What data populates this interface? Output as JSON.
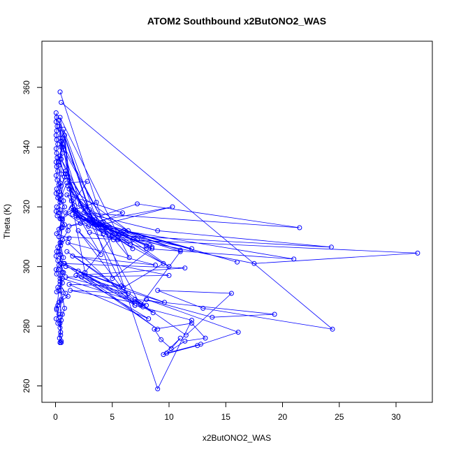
{
  "chart_data": {
    "type": "line",
    "title": "ATOM2 Southbound x2ButONO2_WAS",
    "xlabel": "x2ButONO2_WAS",
    "ylabel": "Theta (K)",
    "xlim": [
      -1.2,
      33.2
    ],
    "ylim": [
      254.5,
      375.5
    ],
    "xticks": [
      0,
      5,
      10,
      15,
      20,
      25,
      30
    ],
    "yticks": [
      260,
      280,
      300,
      320,
      340,
      360
    ],
    "grid": false,
    "line_color": "#0000ff",
    "marker": "open-circle",
    "series": [
      {
        "x": [
          0.05,
          0.1,
          0.05,
          0.15,
          0.1,
          0.05,
          0.1,
          0.2,
          0.05,
          0.1,
          0.15,
          0.05,
          0.1,
          0.2,
          0.05,
          0.15,
          0.3,
          0.1,
          0.05,
          0.2,
          0.4,
          0.1,
          0.05,
          0.15,
          0.6,
          0.8,
          0.3,
          0.1,
          1.2,
          0.5,
          0.2,
          0.1,
          0.05,
          0.2,
          0.3,
          0.05,
          0.1,
          0.4,
          0.6,
          0.2,
          0.1,
          1.1,
          0.5,
          0.2,
          0.1,
          0.3,
          0.05,
          0.2,
          0.4,
          0.1,
          0.3,
          0.6,
          0.4,
          0.3,
          0.5,
          0.7,
          0.4,
          0.3,
          0.5,
          0.4,
          0.6,
          0.4,
          0.5,
          0.3,
          0.4,
          0.5,
          0.45,
          0.5,
          0.4,
          0.5,
          0.4,
          0.45,
          0.5,
          0.4,
          0.5,
          0.45,
          0.5,
          0.35,
          0.4
        ],
        "y": [
          351.5,
          350.0,
          348.5,
          347.0,
          345.5,
          344.0,
          342.5,
          341.0,
          339.5,
          338.0,
          336.5,
          335.0,
          333.5,
          332.0,
          330.5,
          329.0,
          327.5,
          326.0,
          324.5,
          323.0,
          321.5,
          320.0,
          318.5,
          317.0,
          315.5,
          314.0,
          312.5,
          311.0,
          309.5,
          308.0,
          306.5,
          305.0,
          303.5,
          302.0,
          300.5,
          299.0,
          297.5,
          296.0,
          294.5,
          293.0,
          291.5,
          290.0,
          288.5,
          287.0,
          285.5,
          284.0,
          282.5,
          281.0,
          279.5,
          286.0,
          292.0,
          298.0,
          304.0,
          310.0,
          316.0,
          322.0,
          328.0,
          334.0,
          340.0,
          346.0,
          343.0,
          337.0,
          331.0,
          325.0,
          319.0,
          313.0,
          307.0,
          301.0,
          295.0,
          289.0,
          283.0,
          277.0,
          275.0,
          274.5,
          274.5,
          278.0,
          282.0,
          276.0,
          274.5
        ]
      },
      {
        "x": [
          0.3,
          0.4,
          0.6,
          0.3,
          0.9,
          0.5,
          0.2,
          0.8,
          0.4,
          1.1,
          0.6,
          0.3,
          0.5,
          0.7,
          0.4,
          0.9,
          0.3,
          0.6,
          0.4,
          0.8,
          0.5,
          0.3,
          0.7,
          0.4,
          0.6,
          0.3,
          0.5,
          0.8,
          0.4,
          0.6
        ],
        "y": [
          347.0,
          343.0,
          338.0,
          335.0,
          331.0,
          327.0,
          323.0,
          320.0,
          316.0,
          312.0,
          309.0,
          305.0,
          301.0,
          298.0,
          294.0,
          291.0,
          288.0,
          284.0,
          281.0,
          286.0,
          292.0,
          299.0,
          303.0,
          308.0,
          313.0,
          318.0,
          324.0,
          330.0,
          336.0,
          341.0
        ]
      },
      {
        "x": [
          0.4,
          9.0,
          12.0,
          7.0,
          2.0,
          4.0,
          1.5,
          0.8,
          5.0,
          8.5,
          3.0,
          1.0,
          6.0,
          9.5,
          2.5,
          0.5,
          7.5,
          11.0,
          3.5,
          1.2,
          5.5,
          10.0,
          2.2,
          0.6,
          4.5,
          8.0,
          1.8,
          0.4,
          6.5,
          3.0,
          0.9,
          2.6,
          5.2,
          1.4,
          0.7,
          3.8,
          6.8,
          2.0,
          0.5,
          4.2,
          7.2,
          1.6,
          0.3,
          3.2
        ],
        "y": [
          358.5,
          259.0,
          282.0,
          287.0,
          312.0,
          304.0,
          320.0,
          344.0,
          296.0,
          306.0,
          316.0,
          330.0,
          293.0,
          301.0,
          318.0,
          336.0,
          287.0,
          305.0,
          314.0,
          326.0,
          309.0,
          300.0,
          321.0,
          340.0,
          313.0,
          307.0,
          317.0,
          350.0,
          303.0,
          319.0,
          332.0,
          298.0,
          311.0,
          322.0,
          346.0,
          314.0,
          306.0,
          318.0,
          342.0,
          315.0,
          309.0,
          319.0,
          349.0,
          316.0
        ]
      },
      {
        "x": [
          0.5,
          24.4,
          13.0,
          9.0,
          15.5,
          11.5,
          7.0,
          19.3,
          13.8,
          8.0,
          16.1,
          12.5,
          9.5,
          11.0,
          10.2,
          9.3,
          8.7,
          12.0,
          13.2,
          11.4,
          9.8,
          12.8
        ],
        "y": [
          355.0,
          279.0,
          286.0,
          292.0,
          291.0,
          277.0,
          289.0,
          284.0,
          283.0,
          289.0,
          278.0,
          273.5,
          270.5,
          276.0,
          272.5,
          275.5,
          279.0,
          281.0,
          276.0,
          275.0,
          271.0,
          274.0
        ]
      },
      {
        "x": [
          0.3,
          31.9,
          17.5,
          5.0,
          24.3,
          9.0,
          2.5,
          21.5,
          7.2,
          1.2,
          10.3,
          4.0,
          6.8,
          3.0,
          12.0,
          5.6,
          8.3,
          2.0,
          16.0,
          6.0,
          11.0,
          3.2,
          8.5,
          1.5,
          6.6,
          4.4,
          21.0,
          8.0,
          3.0
        ],
        "y": [
          310.0,
          304.5,
          301.0,
          310.5,
          306.5,
          312.0,
          318.0,
          313.0,
          321.0,
          313.5,
          320.0,
          314.0,
          309.0,
          315.5,
          306.0,
          311.0,
          307.0,
          316.5,
          301.5,
          312.0,
          305.5,
          315.0,
          306.5,
          317.5,
          307.5,
          313.0,
          302.5,
          306.0,
          311.5
        ]
      },
      {
        "x": [
          0.6,
          8.0,
          1.0,
          8.6,
          0.8,
          7.5,
          1.3,
          6.4,
          0.9,
          10.0,
          1.5,
          8.8,
          1.1,
          7.0,
          2.0,
          9.0,
          0.7,
          11.4,
          1.8,
          8.2,
          1.2,
          5.8,
          0.9,
          9.6,
          2.3,
          7.7
        ],
        "y": [
          296.0,
          287.0,
          305.0,
          284.5,
          301.0,
          287.5,
          292.0,
          291.0,
          296.5,
          297.0,
          303.5,
          300.5,
          308.0,
          287.0,
          298.5,
          279.0,
          301.0,
          299.5,
          297.0,
          282.5,
          294.0,
          293.5,
          300.0,
          288.0,
          296.5,
          286.5
        ]
      },
      {
        "x": [
          0.4,
          1.0,
          2.8,
          0.6,
          1.7,
          3.6,
          0.9,
          2.2,
          4.7,
          1.4,
          2.9,
          5.9,
          1.0,
          2.4,
          3.8,
          1.8,
          4.2,
          2.6,
          6.4,
          1.1,
          3.3,
          5.1,
          2.0
        ],
        "y": [
          322.5,
          328.0,
          328.5,
          316.0,
          319.0,
          321.5,
          318.0,
          314.5,
          310.5,
          319.5,
          313.5,
          318.0,
          324.0,
          316.0,
          313.0,
          318.5,
          311.0,
          320.0,
          312.0,
          327.0,
          315.5,
          309.0,
          317.0
        ]
      }
    ]
  }
}
